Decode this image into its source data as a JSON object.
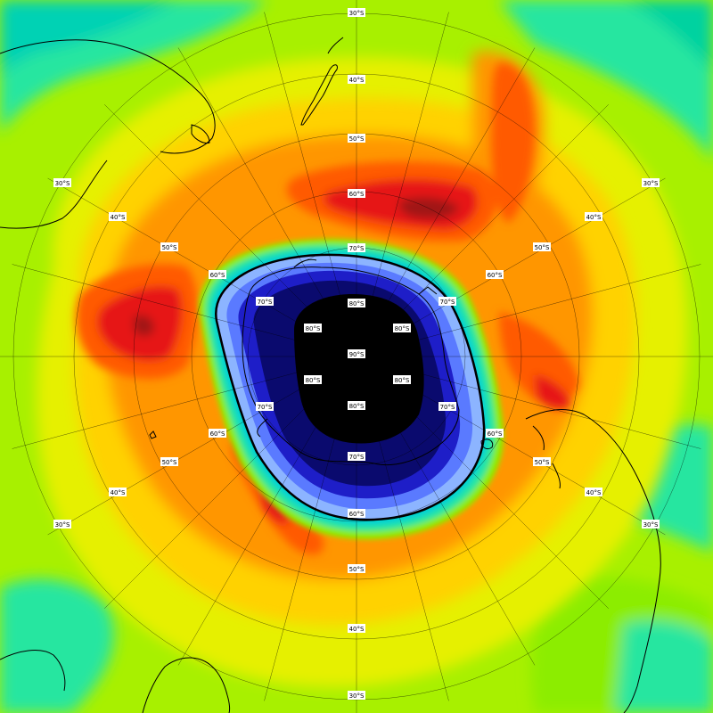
{
  "map": {
    "projection": "south-polar-stereographic",
    "center_latitude_label": "90°S",
    "latitude_labels": [
      "30°S",
      "40°S",
      "50°S",
      "60°S",
      "70°S",
      "80°S"
    ],
    "meridian_spacing_degrees": 15,
    "gridline_color": "#000000",
    "coastline_color": "#000000",
    "contour_outline_color": "#000000",
    "color_scale": [
      {
        "level": "very-low",
        "color": "#000000"
      },
      {
        "level": "deep",
        "color": "#0a0a6e"
      },
      {
        "level": "low",
        "color": "#1e1ec8"
      },
      {
        "level": "low-mid",
        "color": "#5a7aff"
      },
      {
        "level": "mid-low",
        "color": "#8cb4ff"
      },
      {
        "level": "transition",
        "color": "#00d2d2"
      },
      {
        "level": "mid",
        "color": "#28e6a0"
      },
      {
        "level": "mid-high",
        "color": "#8ced00"
      },
      {
        "level": "high",
        "color": "#e6f000"
      },
      {
        "level": "higher",
        "color": "#ffd200"
      },
      {
        "level": "very-high",
        "color": "#ff9600"
      },
      {
        "level": "peak",
        "color": "#ff5a00"
      },
      {
        "level": "max",
        "color": "#e61414"
      },
      {
        "level": "extreme",
        "color": "#a01414"
      }
    ]
  }
}
